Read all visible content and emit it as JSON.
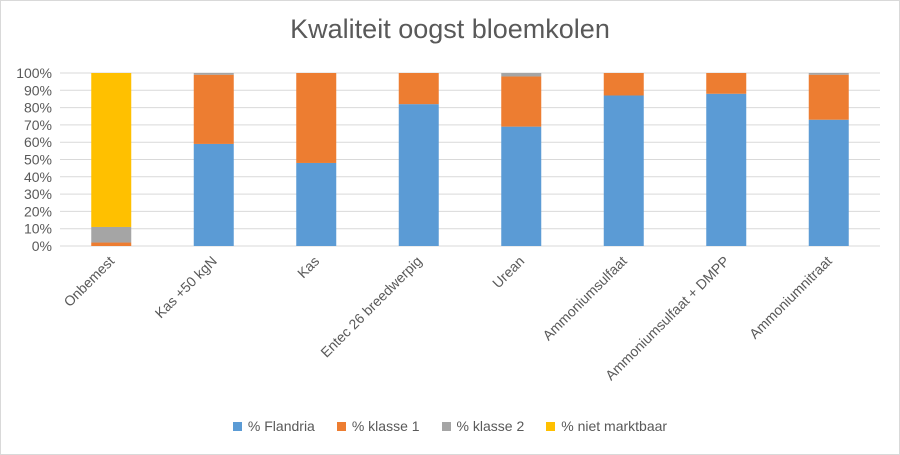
{
  "chart_data": {
    "type": "bar",
    "stacked": true,
    "title": "Kwaliteit oogst bloemkolen",
    "xlabel": "",
    "ylabel": "",
    "ylim": [
      0,
      100
    ],
    "yticks": [
      "0%",
      "10%",
      "20%",
      "30%",
      "40%",
      "50%",
      "60%",
      "70%",
      "80%",
      "90%",
      "100%"
    ],
    "grid": true,
    "legend_position": "bottom",
    "categories": [
      "Onbemest",
      "Kas +50 kgN",
      "Kas",
      "Entec 26 breedwerpig",
      "Urean",
      "Ammoniumsulfaat",
      "Ammoniumsulfaat + DMPP",
      "Ammoniumnitraat"
    ],
    "series": [
      {
        "name": "% Flandria",
        "color": "#5b9bd5",
        "values": [
          0,
          59,
          48,
          82,
          69,
          87,
          88,
          73
        ]
      },
      {
        "name": "% klasse 1",
        "color": "#ed7d31",
        "values": [
          2,
          40,
          52,
          18,
          29,
          13,
          12,
          26
        ]
      },
      {
        "name": "% klasse 2",
        "color": "#a5a5a5",
        "values": [
          9,
          1,
          0,
          0,
          2,
          0,
          0,
          1
        ]
      },
      {
        "name": "% niet marktbaar",
        "color": "#ffc000",
        "values": [
          89,
          0,
          0,
          0,
          0,
          0,
          0,
          0
        ]
      }
    ]
  }
}
